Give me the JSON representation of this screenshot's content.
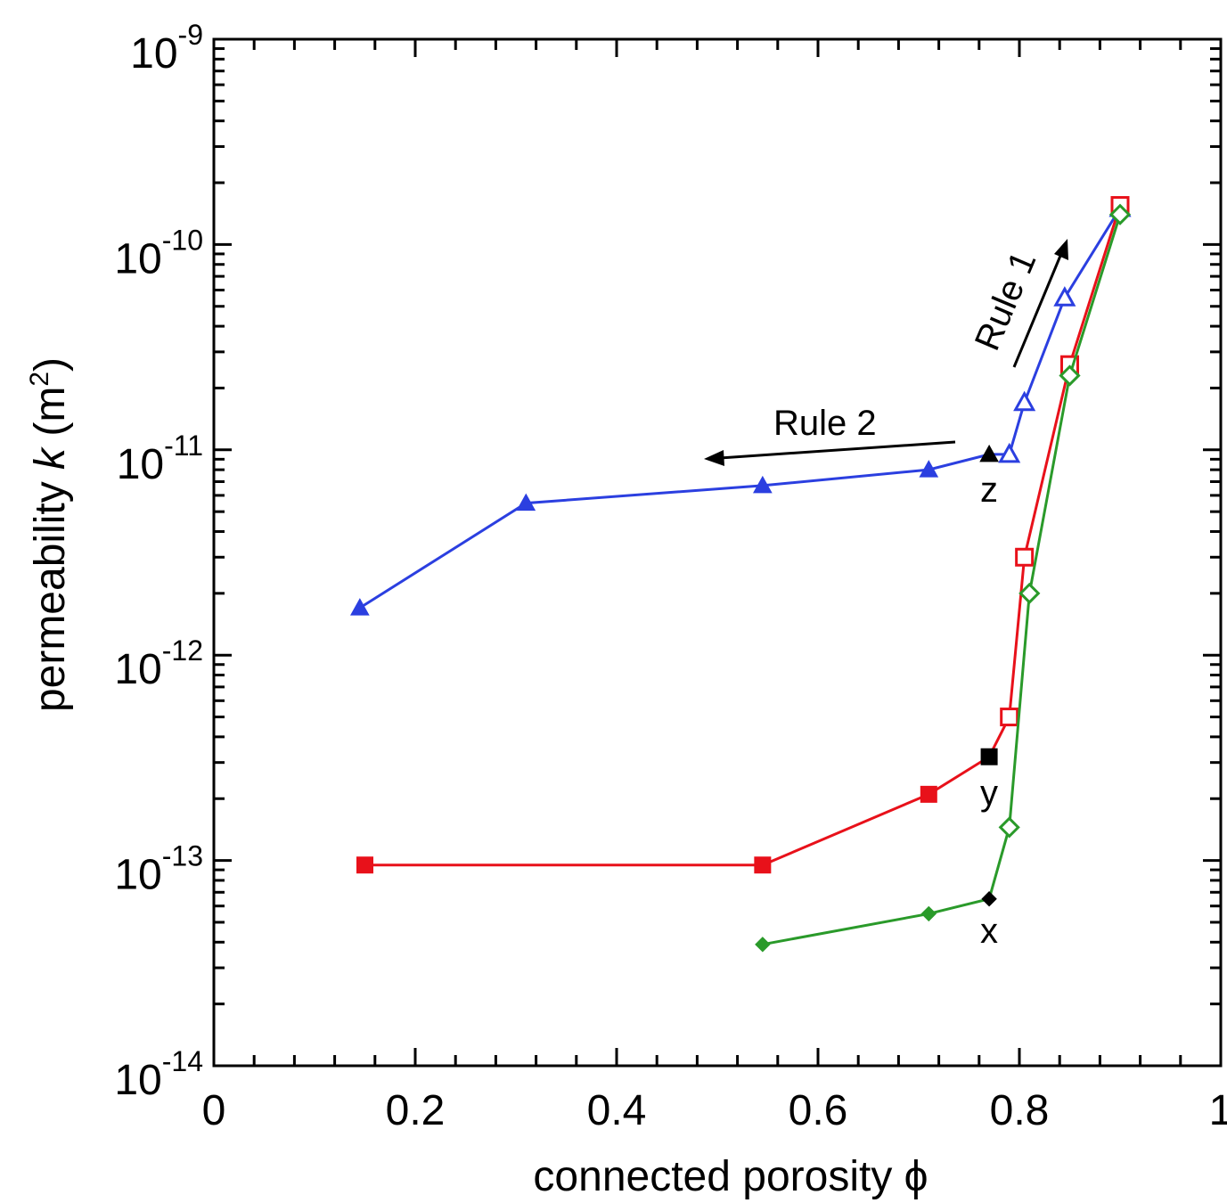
{
  "chart_data": {
    "type": "line",
    "xlabel": "connected porosity ϕ",
    "ylabel": {
      "prefix": "permeability ",
      "var": "k",
      "mid": " (m",
      "sup": "2",
      "suffix": ")"
    },
    "xlim": [
      0,
      1
    ],
    "ylim": [
      1e-14,
      1e-09
    ],
    "yscale": "log",
    "x_ticks": [
      "0",
      "0.2",
      "0.4",
      "0.6",
      "0.8",
      "1"
    ],
    "x_tick_values": [
      0,
      0.2,
      0.4,
      0.6,
      0.8,
      1
    ],
    "y_ticks": [
      {
        "base": "10",
        "exp": "-14",
        "value": 1e-14
      },
      {
        "base": "10",
        "exp": "-13",
        "value": 1e-13
      },
      {
        "base": "10",
        "exp": "-12",
        "value": 1e-12
      },
      {
        "base": "10",
        "exp": "-11",
        "value": 1e-11
      },
      {
        "base": "10",
        "exp": "-10",
        "value": 1e-10
      },
      {
        "base": "10",
        "exp": "-9",
        "value": 1e-09
      }
    ],
    "series": [
      {
        "color": "#2b3fe0",
        "marker": "triangle",
        "points": [
          {
            "x": 0.145,
            "y": 1.7e-12,
            "filled": true
          },
          {
            "x": 0.31,
            "y": 5.5e-12,
            "filled": true
          },
          {
            "x": 0.545,
            "y": 6.7e-12,
            "filled": true
          },
          {
            "x": 0.71,
            "y": 8e-12,
            "filled": true
          },
          {
            "x": 0.77,
            "y": 9.5e-12,
            "filled": true,
            "black": true
          },
          {
            "x": 0.79,
            "y": 9.5e-12,
            "filled": false
          },
          {
            "x": 0.805,
            "y": 1.7e-11,
            "filled": false
          },
          {
            "x": 0.845,
            "y": 5.5e-11,
            "filled": false
          },
          {
            "x": 0.9,
            "y": 1.5e-10,
            "filled": false
          }
        ]
      },
      {
        "color": "#e8111a",
        "marker": "square",
        "points": [
          {
            "x": 0.15,
            "y": 9.5e-14,
            "filled": true
          },
          {
            "x": 0.545,
            "y": 9.5e-14,
            "filled": true
          },
          {
            "x": 0.71,
            "y": 2.1e-13,
            "filled": true
          },
          {
            "x": 0.77,
            "y": 3.2e-13,
            "filled": true,
            "black": true
          },
          {
            "x": 0.79,
            "y": 5e-13,
            "filled": false
          },
          {
            "x": 0.805,
            "y": 3e-12,
            "filled": false
          },
          {
            "x": 0.85,
            "y": 2.6e-11,
            "filled": false
          },
          {
            "x": 0.9,
            "y": 1.55e-10,
            "filled": false
          }
        ]
      },
      {
        "color": "#2a9a2a",
        "marker": "diamond",
        "points": [
          {
            "x": 0.545,
            "y": 3.9e-14,
            "filled": true
          },
          {
            "x": 0.71,
            "y": 5.5e-14,
            "filled": true
          },
          {
            "x": 0.77,
            "y": 6.5e-14,
            "filled": true,
            "black": true
          },
          {
            "x": 0.79,
            "y": 1.45e-13,
            "filled": false
          },
          {
            "x": 0.81,
            "y": 2e-12,
            "filled": false
          },
          {
            "x": 0.85,
            "y": 2.3e-11,
            "filled": false
          },
          {
            "x": 0.9,
            "y": 1.4e-10,
            "filled": false
          }
        ]
      }
    ],
    "annotations": {
      "rule1": "Rule 1",
      "rule2": "Rule 2",
      "z": "z",
      "y": "y",
      "x": "x"
    }
  }
}
